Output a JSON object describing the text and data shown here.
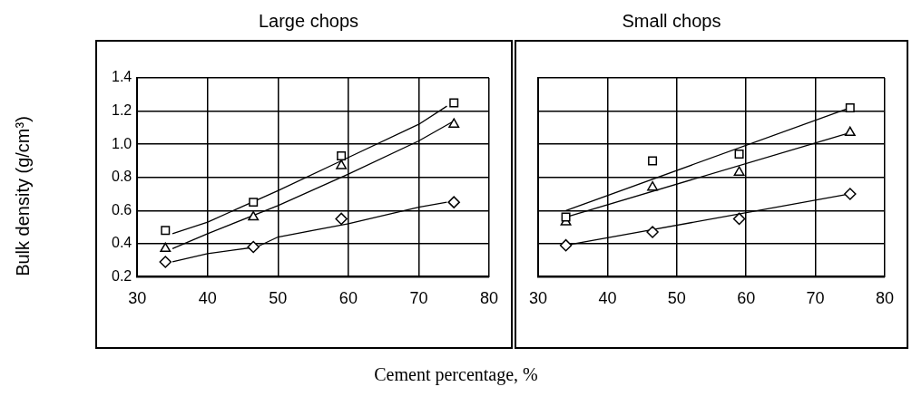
{
  "chart_data": [
    {
      "type": "scatter",
      "title": "Large chops",
      "ylabel": "Bulk density (g/cm³)",
      "xlabel": "Cement percentage, %",
      "xlim": [
        30,
        80
      ],
      "xticks": [
        30,
        40,
        50,
        60,
        70,
        80
      ],
      "ylim": [
        0.2,
        1.4
      ],
      "yticks": [
        {
          "value": 0.2,
          "label": "0.2"
        },
        {
          "value": 0.4,
          "label": "0.4"
        },
        {
          "value": 0.6,
          "label": "0.6"
        },
        {
          "value": 0.8,
          "label": "0.8"
        },
        {
          "value": 1.0,
          "label": "1.0"
        },
        {
          "value": 1.2,
          "label": "1.2"
        },
        {
          "value": 1.4,
          "label": "1.4"
        }
      ],
      "grid": true,
      "legend": false,
      "series": [
        {
          "type": "scatter",
          "marker": "square",
          "color": "#000000",
          "x": [
            34,
            46.5,
            59,
            75
          ],
          "values": [
            0.48,
            0.65,
            0.93,
            1.25
          ]
        },
        {
          "type": "scatter",
          "marker": "triangle",
          "color": "#000000",
          "x": [
            34,
            46.5,
            59,
            75
          ],
          "values": [
            0.37,
            0.56,
            0.87,
            1.12
          ]
        },
        {
          "type": "scatter",
          "marker": "diamond",
          "color": "#000000",
          "x": [
            34,
            46.5,
            59,
            75
          ],
          "values": [
            0.29,
            0.38,
            0.55,
            0.65
          ]
        },
        {
          "type": "line",
          "marker": "none",
          "color": "#000000",
          "x": [
            35,
            40,
            50,
            60,
            70,
            74
          ],
          "values": [
            0.46,
            0.53,
            0.72,
            0.92,
            1.12,
            1.23
          ]
        },
        {
          "type": "line",
          "marker": "none",
          "color": "#000000",
          "x": [
            35,
            40,
            50,
            60,
            70,
            75
          ],
          "values": [
            0.37,
            0.46,
            0.63,
            0.82,
            1.02,
            1.14
          ]
        },
        {
          "type": "line",
          "marker": "none",
          "color": "#000000",
          "x": [
            35,
            40,
            47,
            50,
            60,
            70,
            74
          ],
          "values": [
            0.29,
            0.34,
            0.38,
            0.44,
            0.52,
            0.62,
            0.65
          ]
        }
      ]
    },
    {
      "type": "scatter",
      "title": "Small chops",
      "xlim": [
        30,
        80
      ],
      "xticks": [
        30,
        40,
        50,
        60,
        70,
        80
      ],
      "ylim": [
        0.2,
        1.4
      ],
      "yticks": [
        0.2,
        0.4,
        0.6,
        0.8,
        1,
        1.2,
        1.4
      ],
      "tick_labels": "x",
      "grid": true,
      "legend": false,
      "series": [
        {
          "type": "scatter",
          "marker": "square",
          "color": "#000000",
          "x": [
            34,
            46.5,
            59,
            75
          ],
          "values": [
            0.56,
            0.9,
            0.94,
            1.22
          ]
        },
        {
          "type": "scatter",
          "marker": "triangle",
          "color": "#000000",
          "x": [
            34,
            46.5,
            59,
            75
          ],
          "values": [
            0.53,
            0.74,
            0.83,
            1.07
          ]
        },
        {
          "type": "scatter",
          "marker": "diamond",
          "color": "#000000",
          "x": [
            34,
            46.5,
            59,
            75
          ],
          "values": [
            0.39,
            0.47,
            0.55,
            0.7
          ]
        },
        {
          "type": "line",
          "marker": "none",
          "color": "#000000",
          "x": [
            34,
            75
          ],
          "values": [
            0.6,
            1.22
          ]
        },
        {
          "type": "line",
          "marker": "none",
          "color": "#000000",
          "x": [
            34,
            75
          ],
          "values": [
            0.56,
            1.07
          ]
        },
        {
          "type": "line",
          "marker": "none",
          "color": "#000000",
          "x": [
            34,
            75
          ],
          "values": [
            0.39,
            0.7
          ]
        }
      ]
    }
  ]
}
